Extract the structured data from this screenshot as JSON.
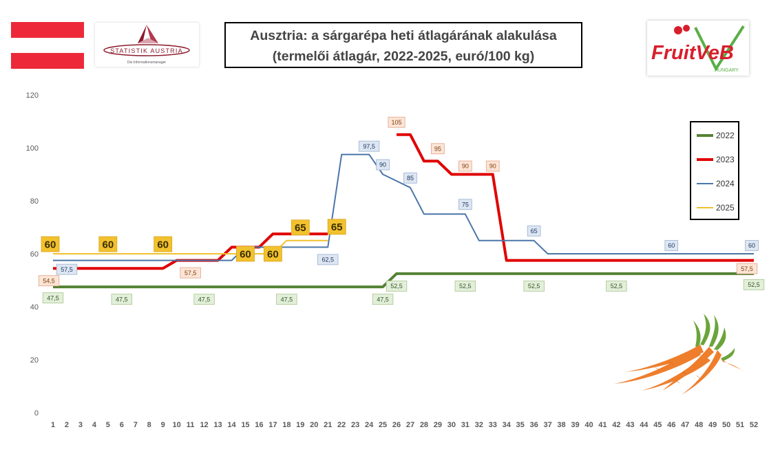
{
  "title": {
    "line1": "Ausztria: a sárgarépa heti átlagárának alakulása",
    "line2": "(termelői átlagár, 2022-2025, euró/100 kg)"
  },
  "logos": {
    "statistik_austria": {
      "name": "STATISTIK AUSTRIA",
      "tagline": "Die Informationsmanager"
    },
    "fruitveb": {
      "name": "FruitVeB",
      "tagline": "HUNGARY"
    }
  },
  "flag": {
    "country": "Austria",
    "colors": [
      "#ED2939",
      "#FFFFFF",
      "#ED2939"
    ]
  },
  "chart_data": {
    "type": "line",
    "title": "Ausztria: a sárgarépa heti átlagárának alakulása (termelői átlagár, 2022-2025, euró/100 kg)",
    "xlabel": "",
    "ylabel": "",
    "ylim": [
      0,
      120
    ],
    "yticks": [
      0,
      20,
      40,
      60,
      80,
      100,
      120
    ],
    "x": [
      1,
      2,
      3,
      4,
      5,
      6,
      7,
      8,
      9,
      10,
      11,
      12,
      13,
      14,
      15,
      16,
      17,
      18,
      19,
      20,
      21,
      22,
      23,
      24,
      25,
      26,
      27,
      28,
      29,
      30,
      31,
      32,
      33,
      34,
      35,
      36,
      37,
      38,
      39,
      40,
      41,
      42,
      43,
      44,
      45,
      46,
      47,
      48,
      49,
      50,
      51,
      52
    ],
    "grid": false,
    "legend_position": "right",
    "series": [
      {
        "name": "2022",
        "color": "#548235",
        "width": 4,
        "values": [
          47.5,
          47.5,
          47.5,
          47.5,
          47.5,
          47.5,
          47.5,
          47.5,
          47.5,
          47.5,
          47.5,
          47.5,
          47.5,
          47.5,
          47.5,
          47.5,
          47.5,
          47.5,
          47.5,
          47.5,
          47.5,
          47.5,
          47.5,
          47.5,
          47.5,
          52.5,
          52.5,
          52.5,
          52.5,
          52.5,
          52.5,
          52.5,
          52.5,
          52.5,
          52.5,
          52.5,
          52.5,
          52.5,
          52.5,
          52.5,
          52.5,
          52.5,
          52.5,
          52.5,
          52.5,
          52.5,
          52.5,
          52.5,
          52.5,
          52.5,
          52.5,
          52.5
        ],
        "labels": [
          {
            "x": 1,
            "text": "47,5"
          },
          {
            "x": 6,
            "text": "47,5"
          },
          {
            "x": 12,
            "text": "47,5"
          },
          {
            "x": 18,
            "text": "47,5"
          },
          {
            "x": 25,
            "text": "47,5"
          },
          {
            "x": 26,
            "text": "52,5"
          },
          {
            "x": 31,
            "text": "52,5"
          },
          {
            "x": 36,
            "text": "52,5"
          },
          {
            "x": 42,
            "text": "52,5"
          },
          {
            "x": 52,
            "text": "52,5"
          }
        ]
      },
      {
        "name": "2023",
        "color": "#E00000",
        "width": 4,
        "values": [
          54.5,
          54.5,
          54.5,
          54.5,
          54.5,
          54.5,
          54.5,
          54.5,
          54.5,
          57.5,
          57.5,
          57.5,
          57.5,
          62.5,
          62.5,
          62.5,
          67.5,
          67.5,
          67.5,
          67.5,
          67.5,
          null,
          null,
          null,
          null,
          105,
          105,
          95,
          95,
          90,
          90,
          90,
          90,
          57.5,
          57.5,
          57.5,
          57.5,
          57.5,
          57.5,
          57.5,
          57.5,
          57.5,
          57.5,
          57.5,
          57.5,
          57.5,
          57.5,
          57.5,
          57.5,
          57.5,
          57.5,
          57.5
        ],
        "labels": [
          {
            "x": 1,
            "text": "54,5"
          },
          {
            "x": 11,
            "text": "57,5"
          },
          {
            "x": 26,
            "text": "105"
          },
          {
            "x": 29,
            "text": "95"
          },
          {
            "x": 31,
            "text": "90"
          },
          {
            "x": 33,
            "text": "90"
          },
          {
            "x": 52,
            "text": "57,5"
          }
        ]
      },
      {
        "name": "2024",
        "color": "#4A76A8",
        "width": 2,
        "values": [
          57.5,
          57.5,
          57.5,
          57.5,
          57.5,
          57.5,
          57.5,
          57.5,
          57.5,
          57.5,
          57.5,
          57.5,
          57.5,
          57.5,
          62.5,
          62.5,
          62.5,
          62.5,
          62.5,
          62.5,
          62.5,
          97.5,
          97.5,
          97.5,
          90,
          87.5,
          85,
          75,
          75,
          75,
          75,
          65,
          65,
          65,
          65,
          65,
          60,
          60,
          60,
          60,
          60,
          60,
          60,
          60,
          60,
          60,
          60,
          60,
          60,
          60,
          60,
          60
        ],
        "labels": [
          {
            "x": 2,
            "text": "57,5"
          },
          {
            "x": 21,
            "text": "62,5"
          },
          {
            "x": 24,
            "text": "97,5"
          },
          {
            "x": 25,
            "text": "90"
          },
          {
            "x": 27,
            "text": "85"
          },
          {
            "x": 31,
            "text": "75"
          },
          {
            "x": 36,
            "text": "65"
          },
          {
            "x": 46,
            "text": "60"
          },
          {
            "x": 52,
            "text": "60"
          }
        ]
      },
      {
        "name": "2025",
        "color": "#F2C12E",
        "width": 2,
        "values": [
          60,
          60,
          60,
          60,
          60,
          60,
          60,
          60,
          60,
          60,
          60,
          60,
          60,
          60,
          60,
          60,
          60,
          65,
          65,
          65,
          65,
          null,
          null,
          null,
          null,
          null,
          null,
          null,
          null,
          null,
          null,
          null,
          null,
          null,
          null,
          null,
          null,
          null,
          null,
          null,
          null,
          null,
          null,
          null,
          null,
          null,
          null,
          null,
          null,
          null,
          null,
          null
        ],
        "labels": [
          {
            "x": 1,
            "text": "60"
          },
          {
            "x": 5,
            "text": "60"
          },
          {
            "x": 9,
            "text": "60"
          },
          {
            "x": 15,
            "text": "60"
          },
          {
            "x": 17,
            "text": "60"
          },
          {
            "x": 19,
            "text": "65"
          },
          {
            "x": 22,
            "text": "65"
          }
        ]
      }
    ]
  }
}
